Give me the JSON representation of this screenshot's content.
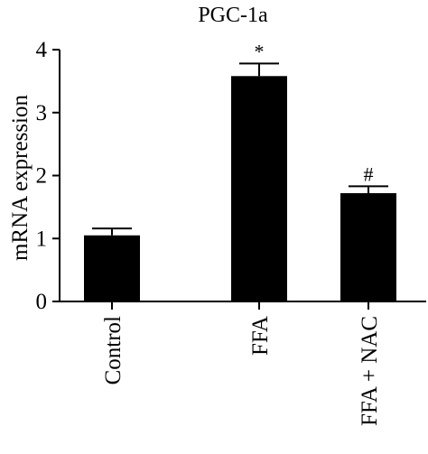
{
  "chart_data": {
    "type": "bar",
    "title": "PGC-1a",
    "xlabel": "",
    "ylabel": "mRNA expression",
    "categories": [
      "Control",
      "FFA",
      "FFA + NAC"
    ],
    "values": [
      1.05,
      3.58,
      1.72
    ],
    "errors": [
      0.11,
      0.2,
      0.11
    ],
    "annotations": [
      "",
      "*",
      "#"
    ],
    "ylim": [
      0,
      4
    ],
    "yticks": [
      0,
      1,
      2,
      3,
      4
    ],
    "grid": false,
    "colors": {
      "bar": "#000000",
      "axis": "#000000",
      "background": "#ffffff"
    }
  }
}
